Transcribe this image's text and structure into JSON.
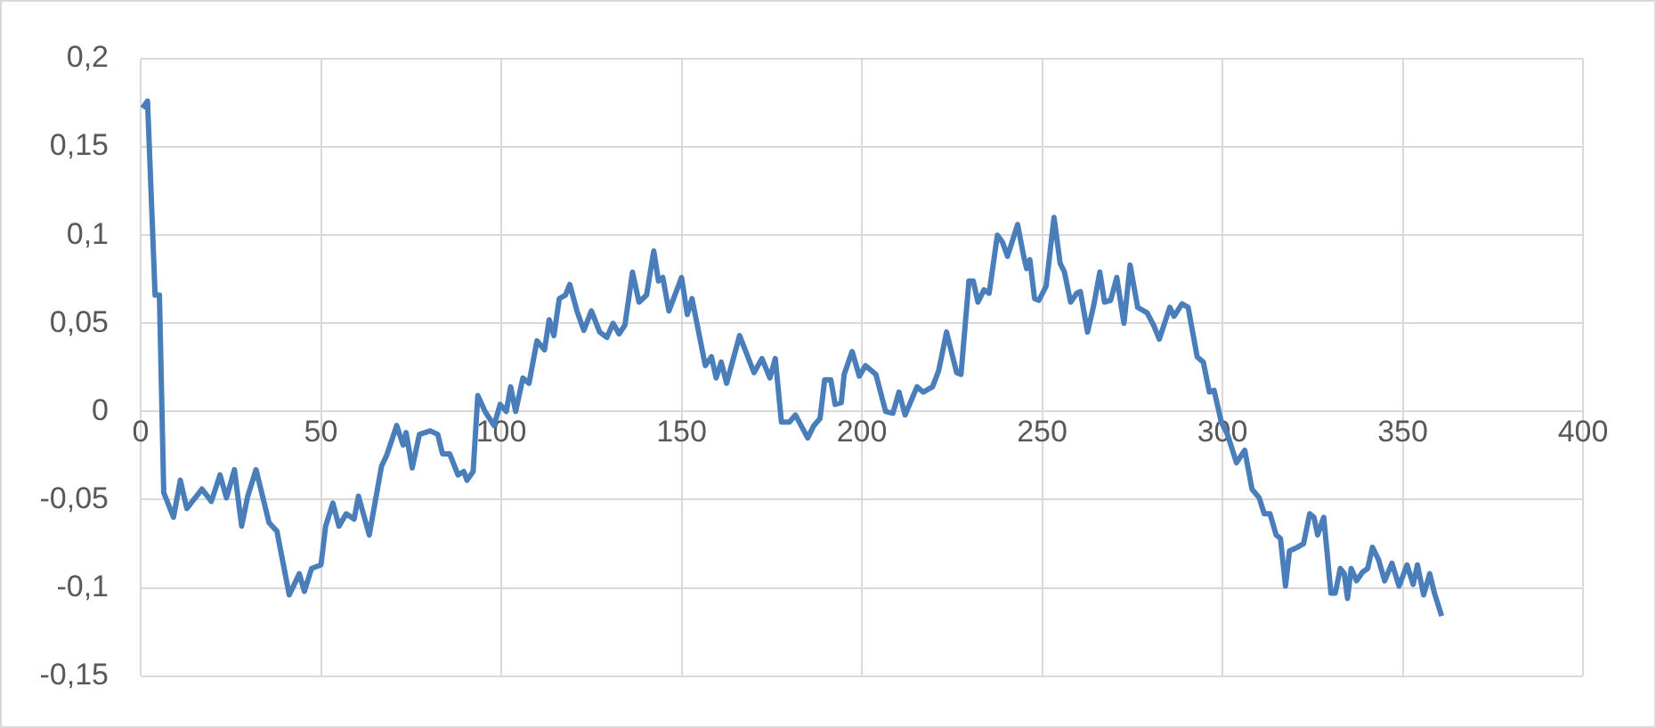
{
  "chart_data": {
    "type": "line",
    "x": [
      0.5,
      1.9,
      4,
      5.2,
      6.4,
      9.1,
      11,
      12.8,
      17,
      19.6,
      22,
      23.8,
      26,
      28,
      29.7,
      32,
      35.6,
      37.8,
      41.2,
      44,
      45.4,
      47.4,
      50,
      51.3,
      53.3,
      55,
      57,
      59.2,
      60.4,
      63.4,
      66.8,
      68.2,
      71,
      72.8,
      73.6,
      75.3,
      77.3,
      80.3,
      82.4,
      83.7,
      85.7,
      88,
      89.6,
      90.5,
      92.2,
      93.5,
      95.5,
      98,
      99.7,
      101.4,
      102.6,
      104,
      106,
      107.7,
      109.9,
      112,
      113.3,
      114.6,
      116.1,
      117.8,
      119,
      121,
      122.9,
      125,
      127.3,
      129.3,
      131,
      132.7,
      134.3,
      136.4,
      138.2,
      140.3,
      142.3,
      143.6,
      144.8,
      146.5,
      150,
      151.6,
      152.9,
      156.6,
      158.3,
      159.6,
      161,
      162.5,
      166.1,
      170.1,
      172.3,
      174.5,
      176,
      177.7,
      179.9,
      181.6,
      185,
      186.7,
      188.4,
      189.7,
      191.4,
      192.6,
      194.3,
      195.1,
      197.3,
      199.3,
      201,
      203.9,
      206.6,
      208.6,
      210.3,
      212,
      215.3,
      217,
      219.6,
      221.3,
      223.5,
      226.3,
      227.5,
      229.7,
      230.9,
      232.2,
      233.9,
      235.3,
      237.6,
      239,
      240.4,
      241.5,
      243.2,
      244.9,
      245.7,
      246.6,
      247.9,
      249.1,
      251.1,
      253.3,
      255,
      256.2,
      257.9,
      259.6,
      260.6,
      262.6,
      264.3,
      266,
      267.3,
      269,
      270.7,
      272.7,
      274.4,
      276.5,
      279.1,
      280.9,
      282.5,
      285.4,
      286.6,
      288.8,
      290.5,
      293,
      294.7,
      296.4,
      297.7,
      299.7,
      301.4,
      303.9,
      306.2,
      308.2,
      310.2,
      311.6,
      313.2,
      314.9,
      316.1,
      317.5,
      318.6,
      320.8,
      322.5,
      324.2,
      325.4,
      326.4,
      328.1,
      330.1,
      331.3,
      332.7,
      333.8,
      334.7,
      335.7,
      337.2,
      338.9,
      340.3,
      341.6,
      343.3,
      345,
      347,
      349,
      351.2,
      352.9,
      354.1,
      355.8,
      357.5,
      358.8,
      360.8
    ],
    "series": [
      {
        "color": "#4a7ebb",
        "values": [
          0.172,
          0.176,
          0.066,
          0.066,
          -0.046,
          -0.06,
          -0.039,
          -0.055,
          -0.044,
          -0.051,
          -0.036,
          -0.049,
          -0.033,
          -0.065,
          -0.048,
          -0.033,
          -0.063,
          -0.068,
          -0.104,
          -0.092,
          -0.102,
          -0.089,
          -0.087,
          -0.065,
          -0.052,
          -0.065,
          -0.058,
          -0.061,
          -0.048,
          -0.07,
          -0.031,
          -0.025,
          -0.008,
          -0.019,
          -0.012,
          -0.032,
          -0.013,
          -0.011,
          -0.013,
          -0.024,
          -0.024,
          -0.036,
          -0.034,
          -0.039,
          -0.034,
          0.009,
          0,
          -0.008,
          0.004,
          0,
          0.014,
          0,
          0.019,
          0.016,
          0.04,
          0.035,
          0.052,
          0.043,
          0.064,
          0.066,
          0.072,
          0.057,
          0.046,
          0.057,
          0.045,
          0.042,
          0.05,
          0.044,
          0.049,
          0.079,
          0.062,
          0.066,
          0.091,
          0.074,
          0.076,
          0.057,
          0.076,
          0.055,
          0.064,
          0.026,
          0.031,
          0.019,
          0.028,
          0.016,
          0.043,
          0.022,
          0.03,
          0.019,
          0.03,
          -0.006,
          -0.006,
          -0.002,
          -0.015,
          -0.008,
          -0.004,
          0.018,
          0.018,
          0.004,
          0.005,
          0.021,
          0.034,
          0.02,
          0.026,
          0.021,
          0,
          -0.001,
          0.011,
          -0.002,
          0.014,
          0.011,
          0.014,
          0.023,
          0.045,
          0.022,
          0.021,
          0.074,
          0.074,
          0.062,
          0.069,
          0.067,
          0.1,
          0.096,
          0.088,
          0.095,
          0.106,
          0.088,
          0.081,
          0.086,
          0.064,
          0.063,
          0.071,
          0.11,
          0.084,
          0.079,
          0.062,
          0.067,
          0.068,
          0.045,
          0.06,
          0.079,
          0.062,
          0.063,
          0.076,
          0.05,
          0.083,
          0.059,
          0.056,
          0.049,
          0.041,
          0.059,
          0.054,
          0.061,
          0.059,
          0.031,
          0.028,
          0.011,
          0.012,
          -0.006,
          -0.013,
          -0.029,
          -0.022,
          -0.044,
          -0.049,
          -0.058,
          -0.058,
          -0.07,
          -0.072,
          -0.099,
          -0.079,
          -0.077,
          -0.075,
          -0.058,
          -0.06,
          -0.07,
          -0.06,
          -0.103,
          -0.103,
          -0.089,
          -0.092,
          -0.106,
          -0.089,
          -0.096,
          -0.091,
          -0.089,
          -0.077,
          -0.084,
          -0.096,
          -0.086,
          -0.099,
          -0.087,
          -0.098,
          -0.087,
          -0.104,
          -0.092,
          -0.103,
          -0.116
        ]
      }
    ],
    "xlim": [
      0,
      400
    ],
    "xticks": [
      0,
      50,
      100,
      150,
      200,
      250,
      300,
      350,
      400
    ],
    "ylim": [
      -0.15,
      0.2
    ],
    "yticks": [
      {
        "value": -0.15,
        "label": "-0,15"
      },
      {
        "value": -0.1,
        "label": "-0,1"
      },
      {
        "value": -0.05,
        "label": "-0,05"
      },
      {
        "value": 0,
        "label": "0"
      },
      {
        "value": 0.05,
        "label": "0,05"
      },
      {
        "value": 0.1,
        "label": "0,1"
      },
      {
        "value": 0.15,
        "label": "0,15"
      },
      {
        "value": 0.2,
        "label": "0,2"
      }
    ],
    "grid": true,
    "legend": false,
    "marker": "none",
    "line_style": "solid"
  }
}
